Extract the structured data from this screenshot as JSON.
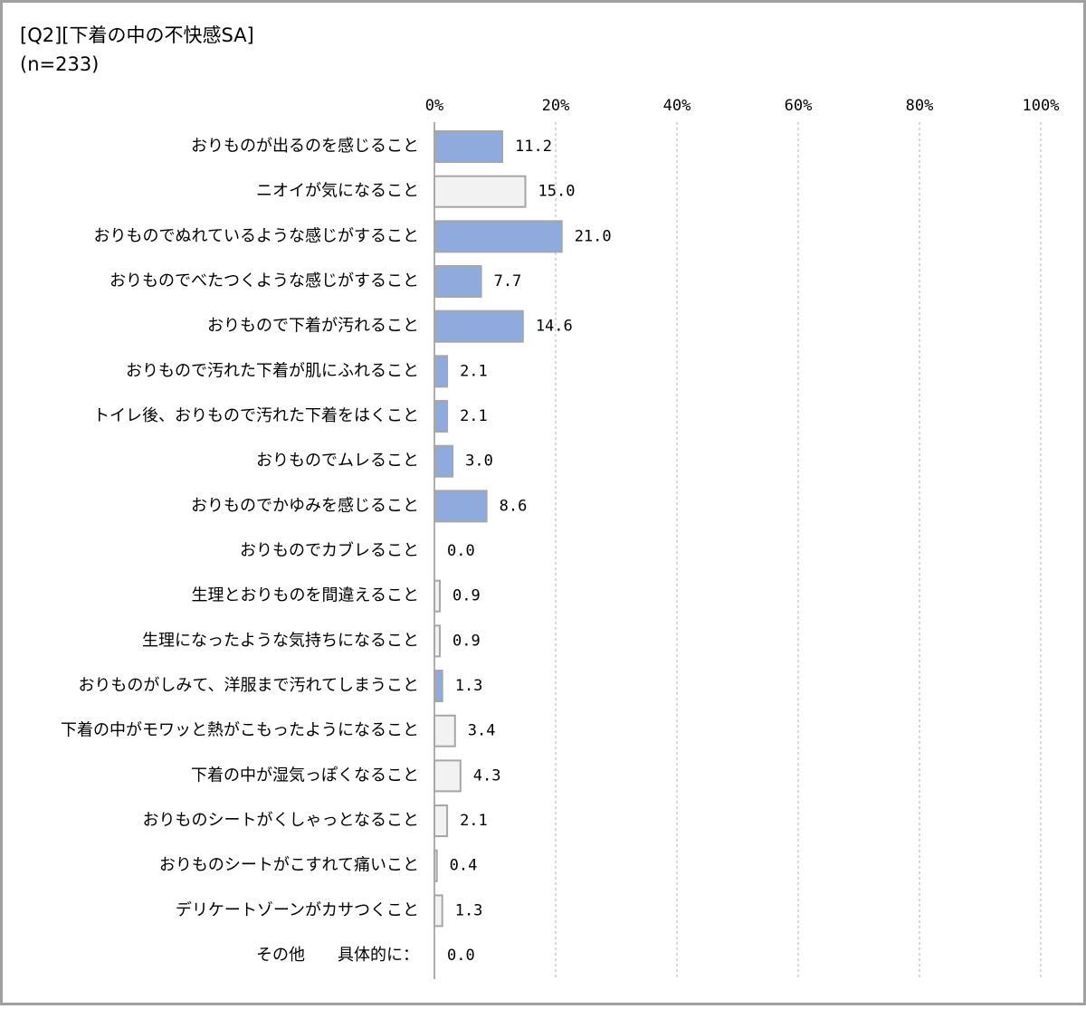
{
  "chart_data": {
    "type": "bar",
    "orientation": "horizontal",
    "title": "[Q2][下着の中の不快感SA]",
    "subtitle": "(n=233)",
    "categories": [
      "おりものが出るのを感じること",
      "ニオイが気になること",
      "おりものでぬれているような感じがすること",
      "おりものでべたつくような感じがすること",
      "おりもので下着が汚れること",
      "おりもので汚れた下着が肌にふれること",
      "トイレ後、おりもので汚れた下着をはくこと",
      "おりものでムレること",
      "おりものでかゆみを感じること",
      "おりものでカブレること",
      "生理とおりものを間違えること",
      "生理になったような気持ちになること",
      "おりものがしみて、洋服まで汚れてしまうこと",
      "下着の中がモワッと熱がこもったようになること",
      "下着の中が湿気っぽくなること",
      "おりものシートがくしゃっとなること",
      "おりものシートがこすれて痛いこと",
      "デリケートゾーンがカサつくこと",
      "その他　　具体的に："
    ],
    "values": [
      11.2,
      15.0,
      21.0,
      7.7,
      14.6,
      2.1,
      2.1,
      3.0,
      8.6,
      0.0,
      0.9,
      0.9,
      1.3,
      3.4,
      4.3,
      2.1,
      0.4,
      1.3,
      0.0
    ],
    "value_labels": [
      "11.2",
      "15.0",
      "21.0",
      "7.7",
      "14.6",
      "2.1",
      "2.1",
      "3.0",
      "8.6",
      "0.0",
      "0.9",
      "0.9",
      "1.3",
      "3.4",
      "4.3",
      "2.1",
      "0.4",
      "1.3",
      "0.0"
    ],
    "colors": [
      "#8faadc",
      "#f2f2f2",
      "#8faadc",
      "#8faadc",
      "#8faadc",
      "#8faadc",
      "#8faadc",
      "#8faadc",
      "#8faadc",
      "#f2f2f2",
      "#f2f2f2",
      "#f2f2f2",
      "#8faadc",
      "#f2f2f2",
      "#f2f2f2",
      "#f2f2f2",
      "#f2f2f2",
      "#f2f2f2",
      "#f2f2f2"
    ],
    "xlim": [
      0,
      100
    ],
    "xticks": [
      {
        "value": 0,
        "label": "0%"
      },
      {
        "value": 20,
        "label": "20%"
      },
      {
        "value": 40,
        "label": "40%"
      },
      {
        "value": 60,
        "label": "60%"
      },
      {
        "value": 80,
        "label": "80%"
      },
      {
        "value": 100,
        "label": "100%"
      }
    ],
    "grid": true
  }
}
